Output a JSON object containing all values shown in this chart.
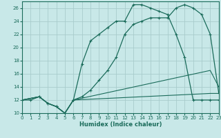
{
  "bg_color": "#c8e8e8",
  "grid_color": "#a8cccc",
  "line_color": "#1a6b5a",
  "xlabel": "Humidex (Indice chaleur)",
  "xlim": [
    0,
    23
  ],
  "ylim": [
    10,
    27
  ],
  "xticks": [
    0,
    1,
    2,
    3,
    4,
    5,
    6,
    7,
    8,
    9,
    10,
    11,
    12,
    13,
    14,
    15,
    16,
    17,
    18,
    19,
    20,
    21,
    22,
    23
  ],
  "yticks": [
    10,
    12,
    14,
    16,
    18,
    20,
    22,
    24,
    26
  ],
  "curve1_x": [
    0,
    1,
    2,
    3,
    4,
    5,
    6,
    7,
    8,
    9,
    10,
    11,
    12,
    13,
    14,
    15,
    16,
    17,
    18,
    19,
    20,
    21,
    22,
    23
  ],
  "curve1_y": [
    12,
    12,
    12.5,
    11.5,
    11,
    10,
    12,
    17.5,
    21,
    22,
    23,
    24,
    24,
    26.5,
    26.5,
    26,
    25.5,
    25,
    22,
    18.5,
    12,
    12,
    12,
    12
  ],
  "curve2_x": [
    0,
    2,
    3,
    4,
    5,
    6,
    7,
    8,
    9,
    10,
    11,
    12,
    13,
    14,
    15,
    16,
    17,
    18,
    19,
    20,
    21,
    22,
    23
  ],
  "curve2_y": [
    12,
    12.5,
    11.5,
    11,
    10,
    12,
    12.5,
    13.5,
    15,
    16.5,
    18.5,
    22,
    23.5,
    24,
    24.5,
    24.5,
    24.5,
    26,
    26.5,
    26,
    25,
    22,
    13
  ],
  "curve3_x": [
    0,
    2,
    3,
    4,
    5,
    6,
    22,
    23
  ],
  "curve3_y": [
    12,
    12.5,
    11.5,
    11,
    10,
    12,
    16.5,
    14
  ],
  "curve4_x": [
    0,
    2,
    3,
    4,
    5,
    6,
    22,
    23
  ],
  "curve4_y": [
    12,
    12.5,
    11.5,
    11,
    10,
    12,
    13,
    13
  ]
}
